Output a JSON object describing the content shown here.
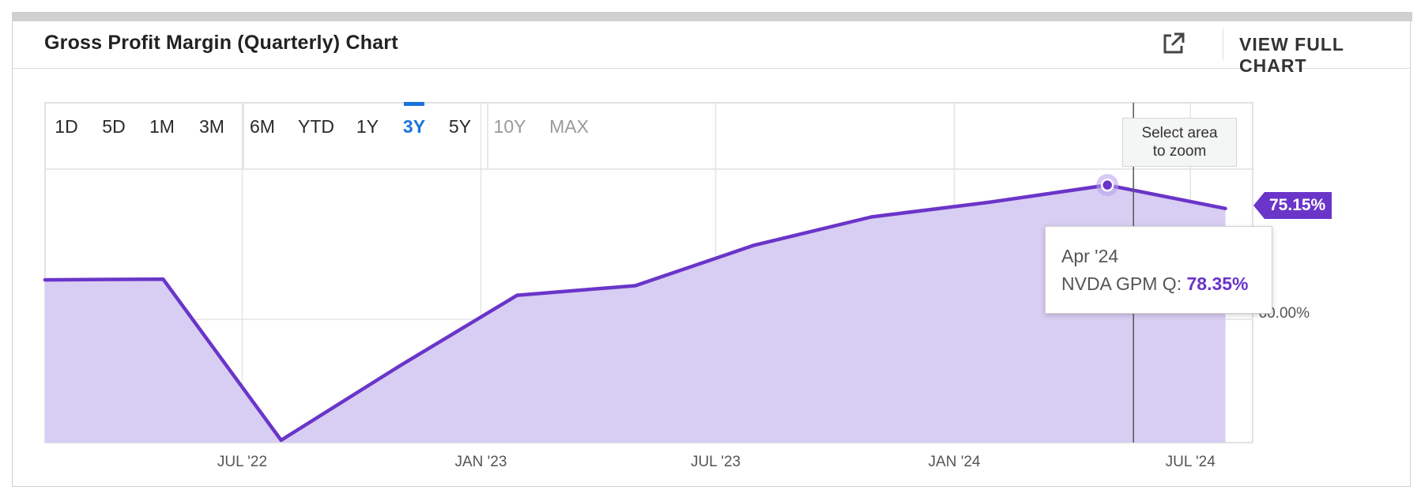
{
  "card": {
    "title": "Gross Profit Margin (Quarterly) Chart",
    "external_icon": "external-link-icon",
    "view_full_label": "VIEW FULL CHART"
  },
  "timeframes": [
    {
      "label": "1D",
      "state": "normal"
    },
    {
      "label": "5D",
      "state": "normal"
    },
    {
      "label": "1M",
      "state": "normal"
    },
    {
      "label": "3M",
      "state": "normal"
    },
    {
      "label": "6M",
      "state": "normal"
    },
    {
      "label": "YTD",
      "state": "normal"
    },
    {
      "label": "1Y",
      "state": "normal"
    },
    {
      "label": "3Y",
      "state": "active"
    },
    {
      "label": "5Y",
      "state": "normal"
    },
    {
      "label": "10Y",
      "state": "disabled"
    },
    {
      "label": "MAX",
      "state": "disabled"
    }
  ],
  "zoom_hint": {
    "line1": "Select area",
    "line2": "to zoom"
  },
  "last_value_badge": "75.15%",
  "tooltip": {
    "date": "Apr '24",
    "series_label": "NVDA GPM Q:",
    "value": "78.35%"
  },
  "colors": {
    "line": "#6a35c9",
    "fill": "#d8cdf2",
    "active_timeframe": "#1a73d9"
  },
  "chart_data": {
    "type": "area",
    "series": [
      {
        "name": "NVDA GPM Q",
        "points": [
          {
            "x": "2022-01-30",
            "y": 65.4
          },
          {
            "x": "2022-05-01",
            "y": 65.5
          },
          {
            "x": "2022-07-31",
            "y": 43.5
          },
          {
            "x": "2022-10-30",
            "y": 53.6
          },
          {
            "x": "2023-01-29",
            "y": 63.3
          },
          {
            "x": "2023-04-30",
            "y": 64.6
          },
          {
            "x": "2023-07-30",
            "y": 70.1
          },
          {
            "x": "2023-10-29",
            "y": 74.0
          },
          {
            "x": "2024-01-28",
            "y": 76.0
          },
          {
            "x": "2024-04-28",
            "y": 78.35
          },
          {
            "x": "2024-07-28",
            "y": 75.15
          }
        ]
      }
    ],
    "x_ticks": [
      {
        "x": "2022-07-01",
        "label": "JUL '22"
      },
      {
        "x": "2023-01-01",
        "label": "JAN '23"
      },
      {
        "x": "2023-07-01",
        "label": "JUL '23"
      },
      {
        "x": "2024-01-01",
        "label": "JAN '24"
      },
      {
        "x": "2024-07-01",
        "label": "JUL '24"
      }
    ],
    "y_ticks": [
      {
        "y": 60,
        "label": "60.00%"
      }
    ],
    "xlim": [
      "2022-01-30",
      "2024-08-18"
    ],
    "ylim": [
      43.5,
      81.5
    ],
    "highlight_x": "2024-04-28",
    "grid": true,
    "legend": "none"
  }
}
